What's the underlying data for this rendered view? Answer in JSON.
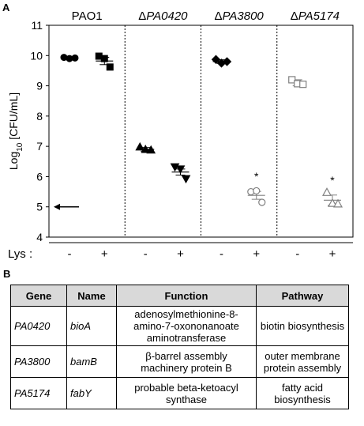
{
  "panel_a": {
    "letter": "A"
  },
  "panel_b": {
    "letter": "B"
  },
  "chart_data": {
    "type": "scatter",
    "ylabel": "Log10 [CFU/mL]",
    "ylabel_main": "Log",
    "ylabel_sub": "10",
    "ylabel_rest": " [CFU/mL]",
    "ylim": [
      4,
      11
    ],
    "yticks": [
      4,
      5,
      6,
      7,
      8,
      9,
      10,
      11
    ],
    "panels": [
      {
        "title_prefix": "",
        "title_italic": "",
        "title_plain": "PAO1"
      },
      {
        "title_prefix": "Δ",
        "title_italic": "PA0420",
        "title_plain": ""
      },
      {
        "title_prefix": "Δ",
        "title_italic": "PA3800",
        "title_plain": ""
      },
      {
        "title_prefix": "Δ",
        "title_italic": "PA5174",
        "title_plain": ""
      }
    ],
    "lys_label": "Lys :",
    "conditions": [
      "-",
      "+",
      "-",
      "+",
      "-",
      "+",
      "-",
      "+"
    ],
    "groups": [
      {
        "panel": 0,
        "lys": "-",
        "marker": "circle",
        "filled": true,
        "color": "#000000",
        "mean": 9.92,
        "sem": 0.03,
        "points": [
          9.94,
          9.9,
          9.92
        ],
        "significant": false
      },
      {
        "panel": 0,
        "lys": "+",
        "marker": "square",
        "filled": true,
        "color": "#000000",
        "mean": 9.82,
        "sem": 0.12,
        "points": [
          9.98,
          9.9,
          9.62
        ],
        "significant": false
      },
      {
        "panel": 1,
        "lys": "-",
        "marker": "triangle",
        "filled": true,
        "color": "#000000",
        "mean": 6.9,
        "sem": 0.06,
        "points": [
          6.98,
          6.9,
          6.88
        ],
        "significant": false
      },
      {
        "panel": 1,
        "lys": "+",
        "marker": "tri-down",
        "filled": true,
        "color": "#000000",
        "mean": 6.15,
        "sem": 0.1,
        "points": [
          6.32,
          6.25,
          5.93
        ],
        "significant": false
      },
      {
        "panel": 2,
        "lys": "-",
        "marker": "diamond",
        "filled": true,
        "color": "#000000",
        "mean": 9.8,
        "sem": 0.06,
        "points": [
          9.87,
          9.75,
          9.8
        ],
        "significant": false
      },
      {
        "panel": 2,
        "lys": "+",
        "marker": "circle",
        "filled": false,
        "color": "#808080",
        "mean": 5.38,
        "sem": 0.13,
        "points": [
          5.5,
          5.53,
          5.15
        ],
        "significant": true
      },
      {
        "panel": 3,
        "lys": "-",
        "marker": "square",
        "filled": false,
        "color": "#808080",
        "mean": 9.1,
        "sem": 0.1,
        "points": [
          9.2,
          9.07,
          9.05
        ],
        "significant": false
      },
      {
        "panel": 3,
        "lys": "+",
        "marker": "triangle",
        "filled": false,
        "color": "#808080",
        "mean": 5.22,
        "sem": 0.17,
        "points": [
          5.48,
          5.12,
          5.1
        ],
        "significant": true
      }
    ],
    "significance_marker": "*",
    "detection_limit_arrow": {
      "y": 5,
      "panel": 0
    }
  },
  "table_b": {
    "headers": [
      "Gene",
      "Name",
      "Function",
      "Pathway"
    ],
    "rows": [
      {
        "gene": "PA0420",
        "name": "bioA",
        "function": [
          "adenosylmethionine-8-",
          "amino-7-oxononanoate",
          "aminotransferase"
        ],
        "pathway": [
          "biotin biosynthesis"
        ]
      },
      {
        "gene": "PA3800",
        "name": "bamB",
        "function": [
          "β-barrel assembly",
          "machinery protein B"
        ],
        "pathway": [
          "outer membrane",
          "protein assembly"
        ]
      },
      {
        "gene": "PA5174",
        "name": "fabY",
        "function": [
          "probable beta-ketoacyl",
          "synthase"
        ],
        "pathway": [
          "fatty acid",
          "biosynthesis"
        ]
      }
    ]
  }
}
